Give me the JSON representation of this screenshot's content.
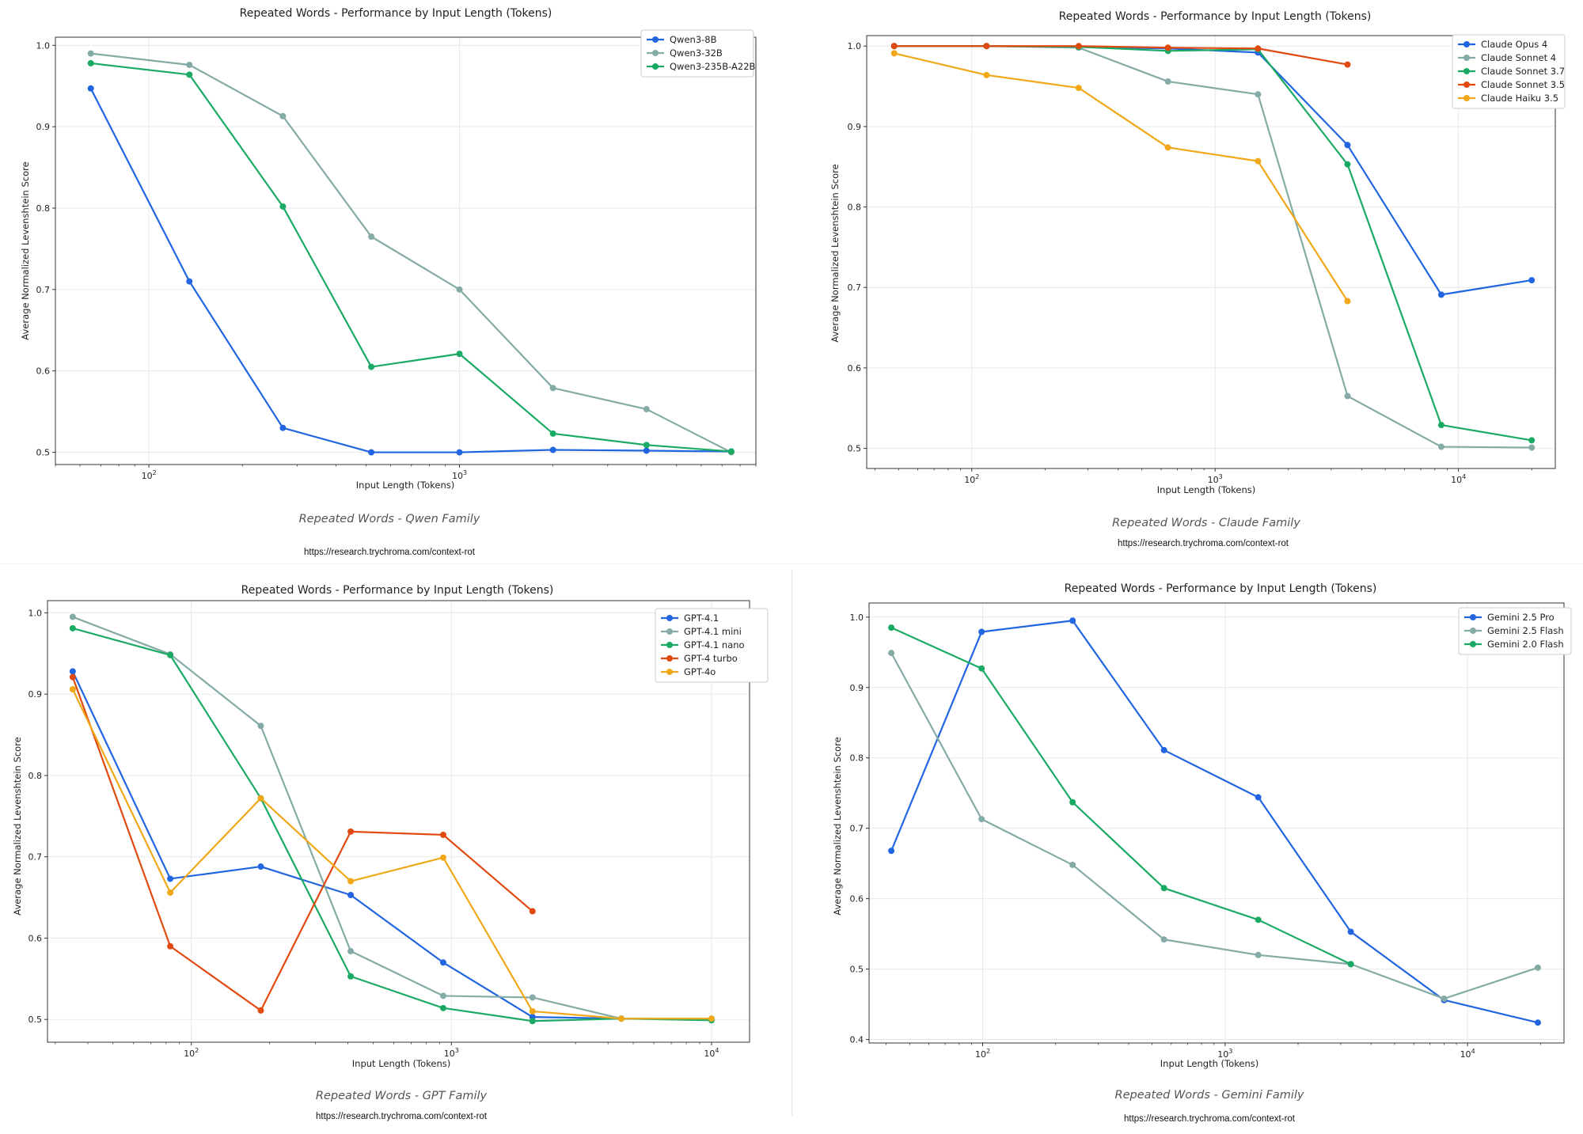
{
  "chart_data": [
    {
      "type": "line",
      "title": "Repeated Words - Performance by Input Length (Tokens)",
      "xlabel": "Input Length (Tokens)",
      "ylabel": "Average Normalized Levenshtein Score",
      "x_scale": "log",
      "xlim": [
        50,
        9000
      ],
      "ylim": [
        0.485,
        1.01
      ],
      "yticks": [
        "0.5",
        "0.6",
        "0.7",
        "0.8",
        "0.9",
        "1.0"
      ],
      "xticks": [
        {
          "value": 100,
          "base": "10",
          "exp": "2"
        },
        {
          "value": 1000,
          "base": "10",
          "exp": "3"
        }
      ],
      "grid": true,
      "legend_position": "top-right",
      "caption": "Repeated Words - Qwen Family",
      "url": "https://research.trychroma.com/context-rot",
      "series": [
        {
          "name": "Qwen3-8B",
          "color": "#2166e0",
          "points": [
            [
              65,
              0.947
            ],
            [
              135,
              0.71
            ],
            [
              270,
              0.53
            ],
            [
              520,
              0.5
            ],
            [
              1000,
              0.5
            ],
            [
              2000,
              0.503
            ],
            [
              4000,
              0.502
            ],
            [
              7500,
              0.501
            ]
          ]
        },
        {
          "name": "Qwen3-32B",
          "color": "#84aba6",
          "points": [
            [
              65,
              0.99
            ],
            [
              135,
              0.976
            ],
            [
              270,
              0.913
            ],
            [
              520,
              0.765
            ],
            [
              1000,
              0.7
            ],
            [
              2000,
              0.579
            ],
            [
              4000,
              0.553
            ],
            [
              7500,
              0.5
            ]
          ]
        },
        {
          "name": "Qwen3-235B-A22B",
          "color": "#1aaa64",
          "points": [
            [
              65,
              0.978
            ],
            [
              135,
              0.964
            ],
            [
              270,
              0.802
            ],
            [
              520,
              0.605
            ],
            [
              1000,
              0.621
            ],
            [
              2000,
              0.523
            ],
            [
              4000,
              0.509
            ],
            [
              7500,
              0.501
            ]
          ]
        }
      ]
    },
    {
      "type": "line",
      "title": "Repeated Words - Performance by Input Length (Tokens)",
      "xlabel": "Input Length (Tokens)",
      "ylabel": "Average Normalized Levenshtein Score",
      "x_scale": "log",
      "xlim": [
        37,
        25000
      ],
      "ylim": [
        0.475,
        1.013
      ],
      "yticks": [
        "0.5",
        "0.6",
        "0.7",
        "0.8",
        "0.9",
        "1.0"
      ],
      "xticks": [
        {
          "value": 100,
          "base": "10",
          "exp": "2"
        },
        {
          "value": 1000,
          "base": "10",
          "exp": "3"
        },
        {
          "value": 10000,
          "base": "10",
          "exp": "4"
        }
      ],
      "grid": true,
      "legend_position": "top-right",
      "caption": "Repeated Words - Claude Family",
      "url": "https://research.trychroma.com/context-rot",
      "series": [
        {
          "name": "Claude Opus 4",
          "color": "#2166e0",
          "points": [
            [
              48,
              1.0
            ],
            [
              115,
              1.0
            ],
            [
              275,
              0.999
            ],
            [
              640,
              0.997
            ],
            [
              1500,
              0.992
            ],
            [
              3500,
              0.877
            ],
            [
              8500,
              0.691
            ],
            [
              20000,
              0.709
            ]
          ]
        },
        {
          "name": "Claude Sonnet 4",
          "color": "#84aba6",
          "points": [
            [
              48,
              1.0
            ],
            [
              115,
              1.0
            ],
            [
              275,
              0.998
            ],
            [
              640,
              0.956
            ],
            [
              1500,
              0.94
            ],
            [
              3500,
              0.565
            ],
            [
              8500,
              0.502
            ],
            [
              20000,
              0.501
            ]
          ]
        },
        {
          "name": "Claude Sonnet 3.7",
          "color": "#1aaa64",
          "points": [
            [
              48,
              1.0
            ],
            [
              115,
              1.0
            ],
            [
              275,
              0.999
            ],
            [
              640,
              0.994
            ],
            [
              1500,
              0.996
            ],
            [
              3500,
              0.853
            ],
            [
              8500,
              0.529
            ],
            [
              20000,
              0.51
            ]
          ]
        },
        {
          "name": "Claude Sonnet 3.5",
          "color": "#e04a10",
          "points": [
            [
              48,
              1.0
            ],
            [
              115,
              1.0
            ],
            [
              275,
              1.0
            ],
            [
              640,
              0.998
            ],
            [
              1500,
              0.997
            ],
            [
              3500,
              0.977
            ]
          ]
        },
        {
          "name": "Claude Haiku 3.5",
          "color": "#f0a818",
          "points": [
            [
              48,
              0.991
            ],
            [
              115,
              0.964
            ],
            [
              275,
              0.948
            ],
            [
              640,
              0.874
            ],
            [
              1500,
              0.857
            ],
            [
              3500,
              0.683
            ]
          ]
        }
      ]
    },
    {
      "type": "line",
      "title": "Repeated Words - Performance by Input Length (Tokens)",
      "xlabel": "Input Length (Tokens)",
      "ylabel": "Average Normalized Levenshtein Score",
      "x_scale": "log",
      "xlim": [
        28,
        14000
      ],
      "ylim": [
        0.472,
        1.015
      ],
      "yticks": [
        "0.5",
        "0.6",
        "0.7",
        "0.8",
        "0.9",
        "1.0"
      ],
      "xticks": [
        {
          "value": 100,
          "base": "10",
          "exp": "2"
        },
        {
          "value": 1000,
          "base": "10",
          "exp": "3"
        },
        {
          "value": 10000,
          "base": "10",
          "exp": "4"
        }
      ],
      "grid": true,
      "legend_position": "top-right",
      "caption": "Repeated Words - GPT Family",
      "url": "https://research.trychroma.com/context-rot",
      "series": [
        {
          "name": "GPT-4.1",
          "color": "#2166e0",
          "points": [
            [
              35,
              0.928
            ],
            [
              83,
              0.673
            ],
            [
              185,
              0.688
            ],
            [
              410,
              0.653
            ],
            [
              930,
              0.57
            ],
            [
              2050,
              0.503
            ],
            [
              4500,
              0.501
            ],
            [
              10000,
              0.5
            ]
          ]
        },
        {
          "name": "GPT-4.1 mini",
          "color": "#84aba6",
          "points": [
            [
              35,
              0.995
            ],
            [
              83,
              0.949
            ],
            [
              185,
              0.861
            ],
            [
              410,
              0.584
            ],
            [
              930,
              0.529
            ],
            [
              2050,
              0.527
            ],
            [
              4500,
              0.501
            ],
            [
              10000,
              0.501
            ]
          ]
        },
        {
          "name": "GPT-4.1 nano",
          "color": "#1aaa64",
          "points": [
            [
              35,
              0.981
            ],
            [
              83,
              0.948
            ],
            [
              185,
              0.772
            ],
            [
              410,
              0.553
            ],
            [
              930,
              0.514
            ],
            [
              2050,
              0.498
            ],
            [
              4500,
              0.501
            ],
            [
              10000,
              0.499
            ]
          ]
        },
        {
          "name": "GPT-4 turbo",
          "color": "#e04a10",
          "points": [
            [
              35,
              0.921
            ],
            [
              83,
              0.59
            ],
            [
              185,
              0.511
            ],
            [
              410,
              0.731
            ],
            [
              930,
              0.727
            ],
            [
              2050,
              0.633
            ]
          ]
        },
        {
          "name": "GPT-4o",
          "color": "#f0a818",
          "points": [
            [
              35,
              0.906
            ],
            [
              83,
              0.656
            ],
            [
              185,
              0.772
            ],
            [
              410,
              0.67
            ],
            [
              930,
              0.699
            ],
            [
              2050,
              0.51
            ],
            [
              4500,
              0.501
            ],
            [
              10000,
              0.501
            ]
          ]
        }
      ]
    },
    {
      "type": "line",
      "title": "Repeated Words - Performance by Input Length (Tokens)",
      "xlabel": "Input Length (Tokens)",
      "ylabel": "Average Normalized Levenshtein Score",
      "x_scale": "log",
      "xlim": [
        34,
        25000
      ],
      "ylim": [
        0.395,
        1.02
      ],
      "yticks": [
        "0.4",
        "0.5",
        "0.6",
        "0.7",
        "0.8",
        "0.9",
        "1.0"
      ],
      "xticks": [
        {
          "value": 100,
          "base": "10",
          "exp": "2"
        },
        {
          "value": 1000,
          "base": "10",
          "exp": "3"
        },
        {
          "value": 10000,
          "base": "10",
          "exp": "4"
        }
      ],
      "grid": true,
      "legend_position": "top-right",
      "caption": "Repeated Words - Gemini Family",
      "url": "https://research.trychroma.com/context-rot",
      "series": [
        {
          "name": "Gemini 2.5 Pro",
          "color": "#2166e0",
          "points": [
            [
              42,
              0.668
            ],
            [
              99,
              0.979
            ],
            [
              235,
              0.995
            ],
            [
              560,
              0.811
            ],
            [
              1370,
              0.744
            ],
            [
              3300,
              0.553
            ],
            [
              8000,
              0.456
            ],
            [
              19500,
              0.424
            ]
          ]
        },
        {
          "name": "Gemini 2.5 Flash",
          "color": "#84aba6",
          "points": [
            [
              42,
              0.949
            ],
            [
              99,
              0.713
            ],
            [
              235,
              0.648
            ],
            [
              560,
              0.542
            ],
            [
              1370,
              0.52
            ],
            [
              3300,
              0.507
            ],
            [
              8000,
              0.458
            ],
            [
              19500,
              0.502
            ]
          ]
        },
        {
          "name": "Gemini 2.0 Flash",
          "color": "#1aaa64",
          "points": [
            [
              42,
              0.985
            ],
            [
              99,
              0.927
            ],
            [
              235,
              0.737
            ],
            [
              560,
              0.615
            ],
            [
              1370,
              0.57
            ],
            [
              3300,
              0.507
            ]
          ]
        }
      ]
    }
  ]
}
